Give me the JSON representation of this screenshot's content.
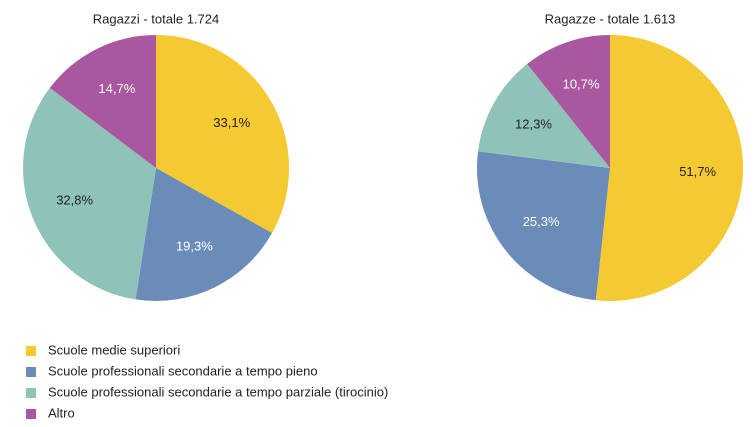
{
  "legend": {
    "labels": [
      "Scuole medie superiori",
      "Scuole professionali secondarie a tempo pieno",
      "Scuole professionali secondarie a tempo parziale (tirocinio)",
      "Altro"
    ],
    "colors": [
      "#f5c932",
      "#6b8bb8",
      "#8fc3ba",
      "#a9579e"
    ],
    "label_colors": [
      "#222222",
      "#ffffff",
      "#222222",
      "#ffffff"
    ]
  },
  "chart_data": [
    {
      "type": "pie",
      "title": "Ragazzi - totale 1.724",
      "values": [
        33.1,
        19.3,
        32.8,
        14.7
      ],
      "value_labels": [
        "33,1%",
        "19,3%",
        "32,8%",
        "14,7%"
      ]
    },
    {
      "type": "pie",
      "title": "Ragazze - totale 1.613",
      "values": [
        51.7,
        25.3,
        12.3,
        10.7
      ],
      "value_labels": [
        "51,7%",
        "25,3%",
        "12,3%",
        "10,7%"
      ]
    }
  ]
}
